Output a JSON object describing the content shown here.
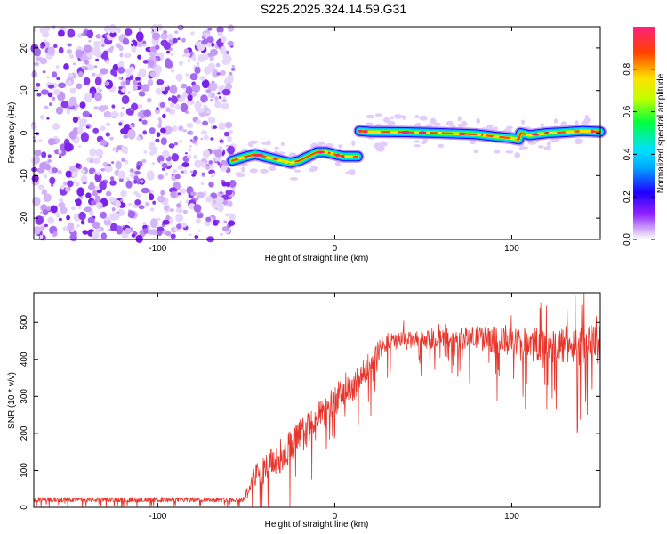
{
  "title": "S225.2025.324.14.59.G31",
  "chart_data": [
    {
      "type": "heatmap",
      "title": "S225.2025.324.14.59.G31",
      "xlabel": "Height of straight line (km)",
      "ylabel": "Frequency (Hz)",
      "xlim": [
        -170,
        150
      ],
      "ylim": [
        -25,
        25
      ],
      "x_ticks": [
        -100,
        0,
        100
      ],
      "y_ticks": [
        -20,
        -10,
        0,
        10,
        20
      ],
      "colorbar": {
        "label": "Normalized spectral amplitude",
        "range": [
          0,
          1
        ],
        "ticks": [
          "0.0",
          "0.2",
          "0.4",
          "0.6",
          "0.8"
        ]
      },
      "regions": [
        {
          "name": "noise",
          "x": [
            -170,
            -57
          ],
          "description_values": "scattered low amplitude 0.0-0.3"
        },
        {
          "name": "signal",
          "x": [
            -57,
            150
          ],
          "amplitude": 1.0
        }
      ],
      "ridge": {
        "x": [
          -58,
          -50,
          -45,
          -40,
          -35,
          -30,
          -25,
          -20,
          -15,
          -10,
          -5,
          0,
          5,
          13,
          14,
          20,
          40,
          60,
          80,
          90,
          100,
          104,
          105,
          110,
          120,
          130,
          140,
          150
        ],
        "freq": [
          -6.5,
          -5.5,
          -5,
          -5.5,
          -6,
          -6.5,
          -7,
          -6.5,
          -5.5,
          -4.5,
          -4.5,
          -5,
          -5.5,
          -5.5,
          0.5,
          0.3,
          0.2,
          0,
          -0.3,
          -0.8,
          -1.2,
          -1.5,
          0,
          -0.5,
          0,
          0.2,
          0.5,
          0.3
        ]
      }
    },
    {
      "type": "line",
      "xlabel": "Height of straight line (km)",
      "ylabel": "SNR (10 * v/v)",
      "xlim": [
        -170,
        150
      ],
      "ylim": [
        0,
        580
      ],
      "x_ticks": [
        -100,
        0,
        100
      ],
      "y_ticks": [
        0,
        100,
        200,
        300,
        400,
        500
      ],
      "series": [
        {
          "name": "SNR",
          "color": "#e8352b",
          "envelope_x": [
            -170,
            -52,
            -48,
            -45,
            -40,
            -30,
            -20,
            -10,
            0,
            10,
            15,
            20,
            25,
            30,
            40,
            60,
            80,
            100,
            120,
            140,
            150
          ],
          "envelope_y": [
            22,
            22,
            60,
            90,
            110,
            150,
            200,
            240,
            300,
            330,
            360,
            400,
            430,
            450,
            455,
            460,
            465,
            455,
            450,
            450,
            450
          ],
          "noise_amplitude": [
            8,
            8,
            30,
            40,
            50,
            60,
            60,
            60,
            55,
            50,
            45,
            40,
            35,
            35,
            30,
            30,
            40,
            50,
            60,
            70,
            70
          ]
        }
      ]
    }
  ]
}
